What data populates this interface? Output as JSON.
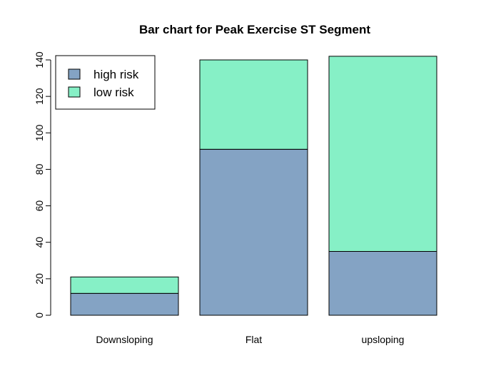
{
  "chart_data": {
    "type": "bar",
    "stacked": true,
    "title": "Bar chart for Peak Exercise ST Segment",
    "xlabel": "",
    "ylabel": "",
    "categories": [
      "Downsloping",
      "Flat",
      "upsloping"
    ],
    "series": [
      {
        "name": "high risk",
        "values": [
          12,
          91,
          35
        ],
        "color": "#84A3C4"
      },
      {
        "name": "low risk",
        "values": [
          9,
          49,
          107
        ],
        "color": "#86F0C6"
      }
    ],
    "ylim": [
      0,
      140
    ],
    "yticks": [
      0,
      20,
      40,
      60,
      80,
      100,
      120,
      140
    ],
    "grid": false,
    "legend_position": "top-left"
  }
}
